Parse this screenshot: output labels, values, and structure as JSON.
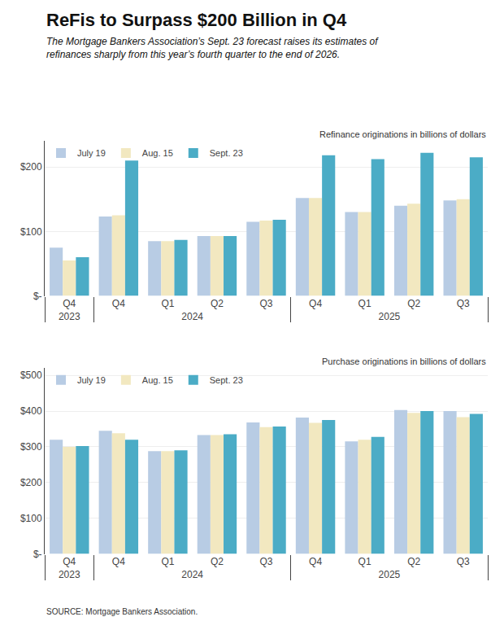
{
  "title": "ReFis to Surpass $200 Billion in Q4",
  "subtitle": "The Mortgage Bankers Association’s Sept. 23 forecast raises its estimates of\nrefinances sharply from this year’s fourth quarter to the end of 2026.",
  "annotations": [
    "SOURCE: Mortgage Bankers Association."
  ],
  "chart_data": [
    {
      "type": "bar",
      "title": "Refinance originations in billions of dollars",
      "categories": [
        "Q4",
        "Q1",
        "Q2",
        "Q3",
        "Q4",
        "Q1",
        "Q2",
        "Q3",
        "Q4"
      ],
      "category_groups": [
        "2023",
        "2024",
        "2024",
        "2024",
        "2024",
        "2025",
        "2025",
        "2025",
        "2025"
      ],
      "series": [
        {
          "name": "July 19",
          "color": "#b8cce4",
          "values": [
            75,
            85,
            93,
            115,
            123,
            130,
            140,
            148,
            152
          ]
        },
        {
          "name": "Aug. 15",
          "color": "#f2e8c0",
          "values": [
            55,
            85,
            93,
            117,
            125,
            130,
            143,
            150,
            152
          ]
        },
        {
          "name": "Sept. 23",
          "color": "#4bacc6",
          "values": [
            60,
            87,
            93,
            118,
            210,
            212,
            222,
            215,
            218
          ]
        }
      ],
      "ylim": [
        0,
        240
      ],
      "yticks": [
        {
          "value": 0,
          "label": "$-"
        },
        {
          "value": 100,
          "label": "$100"
        },
        {
          "value": 200,
          "label": "$200"
        }
      ],
      "grid": true,
      "legend": "upper left"
    },
    {
      "type": "bar",
      "title": "Purchase originations in billions of dollars",
      "categories": [
        "Q4",
        "Q1",
        "Q2",
        "Q3",
        "Q4",
        "Q1",
        "Q2",
        "Q3",
        "Q4"
      ],
      "category_groups": [
        "2023",
        "2024",
        "2024",
        "2024",
        "2024",
        "2025",
        "2025",
        "2025",
        "2025"
      ],
      "series": [
        {
          "name": "July 19",
          "color": "#b8cce4",
          "values": [
            320,
            288,
            333,
            368,
            345,
            315,
            403,
            400,
            382
          ]
        },
        {
          "name": "Aug. 15",
          "color": "#f2e8c0",
          "values": [
            300,
            288,
            333,
            355,
            338,
            320,
            395,
            383,
            367
          ]
        },
        {
          "name": "Sept. 23",
          "color": "#4bacc6",
          "values": [
            302,
            290,
            335,
            357,
            320,
            328,
            400,
            392,
            375
          ]
        }
      ],
      "ylim": [
        0,
        520
      ],
      "yticks": [
        {
          "value": 0,
          "label": "$-"
        },
        {
          "value": 100,
          "label": "$100"
        },
        {
          "value": 200,
          "label": "$200"
        },
        {
          "value": 300,
          "label": "$300"
        },
        {
          "value": 400,
          "label": "$400"
        },
        {
          "value": 500,
          "label": "$500"
        }
      ],
      "grid": true,
      "legend": "upper left"
    }
  ]
}
